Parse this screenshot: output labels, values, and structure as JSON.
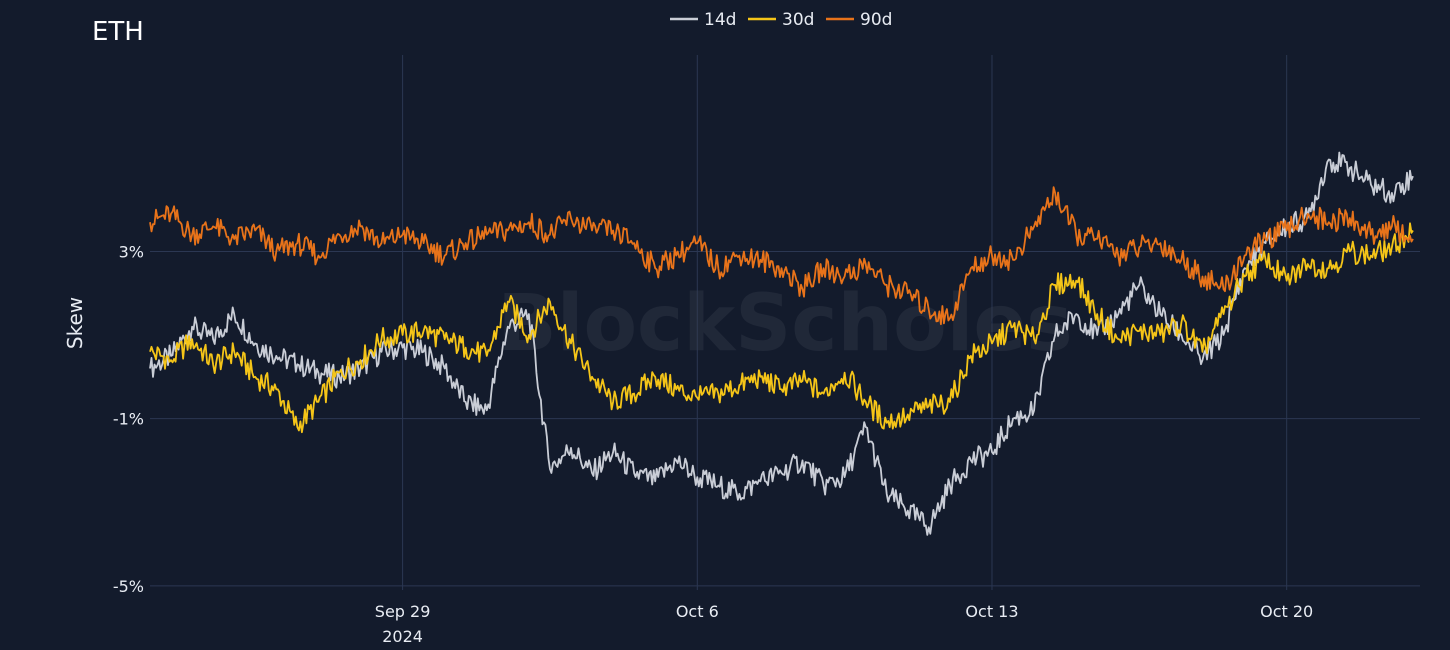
{
  "chart_data": {
    "type": "line",
    "title": "ETH",
    "ylabel": "Skew",
    "xlabel": "",
    "watermark": "BlockScholes",
    "x_range": [
      "2024-09-23T00:00",
      "2024-10-23T04:00"
    ],
    "ylim": [
      -5.1,
      7.7
    ],
    "y_ticks": [
      {
        "value": 3,
        "label": "3%"
      },
      {
        "value": -1,
        "label": "-1%"
      },
      {
        "value": -5,
        "label": "-5%"
      }
    ],
    "x_ticks": [
      {
        "date": "2024-09-29",
        "label": "Sep 29",
        "sublabel": "2024"
      },
      {
        "date": "2024-10-06",
        "label": "Oct 6",
        "sublabel": ""
      },
      {
        "date": "2024-10-13",
        "label": "Oct 13",
        "sublabel": ""
      },
      {
        "date": "2024-10-20",
        "label": "Oct 20",
        "sublabel": ""
      }
    ],
    "legend_position": "top-center",
    "grid": true,
    "series": [
      {
        "name": "14d",
        "color": "#c9cdd6",
        "points": [
          [
            "2024-09-23T00:00",
            0.2
          ],
          [
            "2024-09-23T12:00",
            0.5
          ],
          [
            "2024-09-24T00:00",
            1.2
          ],
          [
            "2024-09-24T12:00",
            0.9
          ],
          [
            "2024-09-25T00:00",
            1.5
          ],
          [
            "2024-09-25T12:00",
            0.8
          ],
          [
            "2024-09-26T00:00",
            0.5
          ],
          [
            "2024-09-26T12:00",
            0.3
          ],
          [
            "2024-09-27T00:00",
            0.1
          ],
          [
            "2024-09-27T12:00",
            0.0
          ],
          [
            "2024-09-28T00:00",
            0.2
          ],
          [
            "2024-09-28T12:00",
            0.6
          ],
          [
            "2024-09-29T00:00",
            0.7
          ],
          [
            "2024-09-29T12:00",
            0.6
          ],
          [
            "2024-09-30T00:00",
            0.2
          ],
          [
            "2024-09-30T12:00",
            -0.6
          ],
          [
            "2024-10-01T00:00",
            -0.8
          ],
          [
            "2024-10-01T12:00",
            1.2
          ],
          [
            "2024-10-02T00:00",
            1.5
          ],
          [
            "2024-10-02T12:00",
            -2.2
          ],
          [
            "2024-10-03T00:00",
            -1.7
          ],
          [
            "2024-10-03T12:00",
            -2.3
          ],
          [
            "2024-10-04T00:00",
            -1.8
          ],
          [
            "2024-10-04T12:00",
            -2.3
          ],
          [
            "2024-10-05T00:00",
            -2.5
          ],
          [
            "2024-10-05T12:00",
            -2.0
          ],
          [
            "2024-10-06T00:00",
            -2.4
          ],
          [
            "2024-10-06T12:00",
            -2.6
          ],
          [
            "2024-10-07T00:00",
            -2.8
          ],
          [
            "2024-10-07T12:00",
            -2.5
          ],
          [
            "2024-10-08T00:00",
            -2.3
          ],
          [
            "2024-10-08T12:00",
            -2.0
          ],
          [
            "2024-10-09T00:00",
            -2.6
          ],
          [
            "2024-10-09T12:00",
            -2.4
          ],
          [
            "2024-10-10T00:00",
            -1.2
          ],
          [
            "2024-10-10T12:00",
            -2.8
          ],
          [
            "2024-10-11T00:00",
            -3.2
          ],
          [
            "2024-10-11T12:00",
            -3.6
          ],
          [
            "2024-10-12T00:00",
            -2.6
          ],
          [
            "2024-10-12T12:00",
            -2.0
          ],
          [
            "2024-10-13T00:00",
            -1.8
          ],
          [
            "2024-10-13T12:00",
            -1.0
          ],
          [
            "2024-10-14T00:00",
            -0.8
          ],
          [
            "2024-10-14T12:00",
            1.0
          ],
          [
            "2024-10-15T00:00",
            1.5
          ],
          [
            "2024-10-15T12:00",
            1.0
          ],
          [
            "2024-10-16T00:00",
            1.5
          ],
          [
            "2024-10-16T12:00",
            2.2
          ],
          [
            "2024-10-17T00:00",
            1.5
          ],
          [
            "2024-10-17T12:00",
            1.0
          ],
          [
            "2024-10-18T00:00",
            0.4
          ],
          [
            "2024-10-18T12:00",
            1.0
          ],
          [
            "2024-10-19T00:00",
            2.6
          ],
          [
            "2024-10-19T12:00",
            3.2
          ],
          [
            "2024-10-20T00:00",
            3.6
          ],
          [
            "2024-10-20T12:00",
            3.8
          ],
          [
            "2024-10-21T00:00",
            5.2
          ],
          [
            "2024-10-21T12:00",
            5.0
          ],
          [
            "2024-10-22T00:00",
            4.6
          ],
          [
            "2024-10-22T12:00",
            4.4
          ],
          [
            "2024-10-23T00:00",
            4.8
          ]
        ]
      },
      {
        "name": "30d",
        "color": "#f5c518",
        "points": [
          [
            "2024-09-23T00:00",
            0.6
          ],
          [
            "2024-09-23T12:00",
            0.4
          ],
          [
            "2024-09-24T00:00",
            0.9
          ],
          [
            "2024-09-24T12:00",
            0.3
          ],
          [
            "2024-09-25T00:00",
            0.6
          ],
          [
            "2024-09-25T12:00",
            0.0
          ],
          [
            "2024-09-26T00:00",
            -0.3
          ],
          [
            "2024-09-26T12:00",
            -1.2
          ],
          [
            "2024-09-27T00:00",
            -0.6
          ],
          [
            "2024-09-27T12:00",
            0.1
          ],
          [
            "2024-09-28T00:00",
            0.4
          ],
          [
            "2024-09-28T12:00",
            0.9
          ],
          [
            "2024-09-29T00:00",
            1.0
          ],
          [
            "2024-09-29T12:00",
            1.1
          ],
          [
            "2024-09-30T00:00",
            0.9
          ],
          [
            "2024-09-30T12:00",
            0.7
          ],
          [
            "2024-10-01T00:00",
            0.5
          ],
          [
            "2024-10-01T12:00",
            1.8
          ],
          [
            "2024-10-02T00:00",
            1.0
          ],
          [
            "2024-10-02T12:00",
            1.8
          ],
          [
            "2024-10-03T00:00",
            0.8
          ],
          [
            "2024-10-03T12:00",
            0.0
          ],
          [
            "2024-10-04T00:00",
            -0.6
          ],
          [
            "2024-10-04T12:00",
            -0.4
          ],
          [
            "2024-10-05T00:00",
            0.0
          ],
          [
            "2024-10-05T12:00",
            -0.3
          ],
          [
            "2024-10-06T00:00",
            -0.5
          ],
          [
            "2024-10-06T12:00",
            -0.4
          ],
          [
            "2024-10-07T00:00",
            -0.2
          ],
          [
            "2024-10-07T12:00",
            0.0
          ],
          [
            "2024-10-08T00:00",
            -0.3
          ],
          [
            "2024-10-08T12:00",
            -0.1
          ],
          [
            "2024-10-09T00:00",
            -0.4
          ],
          [
            "2024-10-09T12:00",
            0.1
          ],
          [
            "2024-10-10T00:00",
            -0.6
          ],
          [
            "2024-10-10T12:00",
            -1.1
          ],
          [
            "2024-10-11T00:00",
            -0.9
          ],
          [
            "2024-10-11T12:00",
            -0.7
          ],
          [
            "2024-10-12T00:00",
            -0.6
          ],
          [
            "2024-10-12T12:00",
            0.5
          ],
          [
            "2024-10-13T00:00",
            0.8
          ],
          [
            "2024-10-13T12:00",
            1.2
          ],
          [
            "2024-10-14T00:00",
            0.9
          ],
          [
            "2024-10-14T12:00",
            2.2
          ],
          [
            "2024-10-15T00:00",
            2.3
          ],
          [
            "2024-10-15T12:00",
            1.5
          ],
          [
            "2024-10-16T00:00",
            0.9
          ],
          [
            "2024-10-16T12:00",
            1.1
          ],
          [
            "2024-10-17T00:00",
            1.0
          ],
          [
            "2024-10-17T12:00",
            1.3
          ],
          [
            "2024-10-18T00:00",
            0.6
          ],
          [
            "2024-10-18T12:00",
            1.5
          ],
          [
            "2024-10-19T00:00",
            2.4
          ],
          [
            "2024-10-19T12:00",
            2.8
          ],
          [
            "2024-10-20T00:00",
            2.3
          ],
          [
            "2024-10-20T12:00",
            2.7
          ],
          [
            "2024-10-21T00:00",
            2.6
          ],
          [
            "2024-10-21T12:00",
            3.0
          ],
          [
            "2024-10-22T00:00",
            2.9
          ],
          [
            "2024-10-22T12:00",
            3.1
          ],
          [
            "2024-10-23T00:00",
            3.5
          ]
        ]
      },
      {
        "name": "90d",
        "color": "#e8731a",
        "points": [
          [
            "2024-09-23T00:00",
            3.7
          ],
          [
            "2024-09-23T12:00",
            3.9
          ],
          [
            "2024-09-24T00:00",
            3.4
          ],
          [
            "2024-09-24T12:00",
            3.6
          ],
          [
            "2024-09-25T00:00",
            3.3
          ],
          [
            "2024-09-25T12:00",
            3.5
          ],
          [
            "2024-09-26T00:00",
            3.0
          ],
          [
            "2024-09-26T12:00",
            3.2
          ],
          [
            "2024-09-27T00:00",
            2.9
          ],
          [
            "2024-09-27T12:00",
            3.4
          ],
          [
            "2024-09-28T00:00",
            3.6
          ],
          [
            "2024-09-28T12:00",
            3.2
          ],
          [
            "2024-09-29T00:00",
            3.4
          ],
          [
            "2024-09-29T12:00",
            3.2
          ],
          [
            "2024-09-30T00:00",
            2.9
          ],
          [
            "2024-09-30T12:00",
            3.2
          ],
          [
            "2024-10-01T00:00",
            3.4
          ],
          [
            "2024-10-01T12:00",
            3.5
          ],
          [
            "2024-10-02T00:00",
            3.7
          ],
          [
            "2024-10-02T12:00",
            3.4
          ],
          [
            "2024-10-03T00:00",
            3.8
          ],
          [
            "2024-10-03T12:00",
            3.5
          ],
          [
            "2024-10-04T00:00",
            3.5
          ],
          [
            "2024-10-04T12:00",
            3.2
          ],
          [
            "2024-10-05T00:00",
            2.6
          ],
          [
            "2024-10-05T12:00",
            2.9
          ],
          [
            "2024-10-06T00:00",
            3.2
          ],
          [
            "2024-10-06T12:00",
            2.6
          ],
          [
            "2024-10-07T00:00",
            2.9
          ],
          [
            "2024-10-07T12:00",
            2.8
          ],
          [
            "2024-10-08T00:00",
            2.6
          ],
          [
            "2024-10-08T12:00",
            2.1
          ],
          [
            "2024-10-09T00:00",
            2.6
          ],
          [
            "2024-10-09T12:00",
            2.4
          ],
          [
            "2024-10-10T00:00",
            2.7
          ],
          [
            "2024-10-10T12:00",
            2.2
          ],
          [
            "2024-10-11T00:00",
            2.0
          ],
          [
            "2024-10-11T12:00",
            1.6
          ],
          [
            "2024-10-12T00:00",
            1.4
          ],
          [
            "2024-10-12T12:00",
            2.6
          ],
          [
            "2024-10-13T00:00",
            2.9
          ],
          [
            "2024-10-13T12:00",
            2.8
          ],
          [
            "2024-10-14T00:00",
            3.6
          ],
          [
            "2024-10-14T12:00",
            4.4
          ],
          [
            "2024-10-15T00:00",
            3.4
          ],
          [
            "2024-10-15T12:00",
            3.3
          ],
          [
            "2024-10-16T00:00",
            2.9
          ],
          [
            "2024-10-16T12:00",
            3.1
          ],
          [
            "2024-10-17T00:00",
            3.2
          ],
          [
            "2024-10-17T12:00",
            2.8
          ],
          [
            "2024-10-18T00:00",
            2.4
          ],
          [
            "2024-10-18T12:00",
            2.1
          ],
          [
            "2024-10-19T00:00",
            2.9
          ],
          [
            "2024-10-19T12:00",
            3.3
          ],
          [
            "2024-10-20T00:00",
            3.5
          ],
          [
            "2024-10-20T12:00",
            3.9
          ],
          [
            "2024-10-21T00:00",
            3.7
          ],
          [
            "2024-10-21T12:00",
            3.8
          ],
          [
            "2024-10-22T00:00",
            3.4
          ],
          [
            "2024-10-22T12:00",
            3.6
          ],
          [
            "2024-10-23T00:00",
            3.3
          ]
        ]
      }
    ]
  }
}
